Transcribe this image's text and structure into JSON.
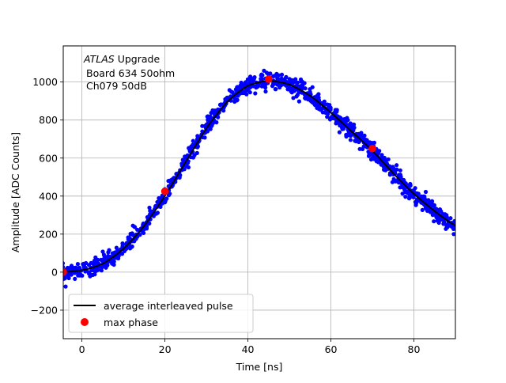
{
  "chart_data": {
    "type": "scatter",
    "xlabel": "Time [ns]",
    "ylabel": "Amplitude [ADC Counts]",
    "xlim": [
      -4.5,
      90
    ],
    "ylim": [
      -350,
      1190
    ],
    "xticks": [
      0,
      20,
      40,
      60,
      80
    ],
    "yticks": [
      -200,
      0,
      200,
      400,
      600,
      800,
      1000
    ],
    "grid": true,
    "annotation": {
      "italic": "ATLAS",
      "rest": " Upgrade",
      "line2": "Board 634 50ohm",
      "line3": "Ch079 50dB"
    },
    "legend": {
      "placement": "lower-left",
      "entries": [
        {
          "label": "average interleaved pulse",
          "kind": "line",
          "color": "#000000"
        },
        {
          "label": "max phase",
          "kind": "marker",
          "color": "#ff0000"
        }
      ]
    },
    "average_pulse": {
      "name": "average interleaved pulse",
      "color": "#000000",
      "x": [
        -4.5,
        0,
        5,
        10,
        15,
        20,
        25,
        30,
        35,
        40,
        45,
        50,
        55,
        60,
        65,
        70,
        75,
        80,
        85,
        90
      ],
      "y": [
        0,
        8,
        40,
        120,
        240,
        400,
        580,
        760,
        900,
        985,
        1010,
        990,
        930,
        840,
        740,
        640,
        520,
        410,
        320,
        240
      ]
    },
    "max_phase": {
      "name": "max phase",
      "color": "#ff0000",
      "x": [
        -4.5,
        20,
        45,
        70
      ],
      "y": [
        0,
        425,
        1015,
        650
      ]
    },
    "samples": {
      "name": "samples",
      "color": "#0000ff",
      "x_range": [
        -5,
        90
      ],
      "count": 1150,
      "noise_sd": 22,
      "outlier": {
        "x": -5,
        "y": -105
      }
    }
  }
}
